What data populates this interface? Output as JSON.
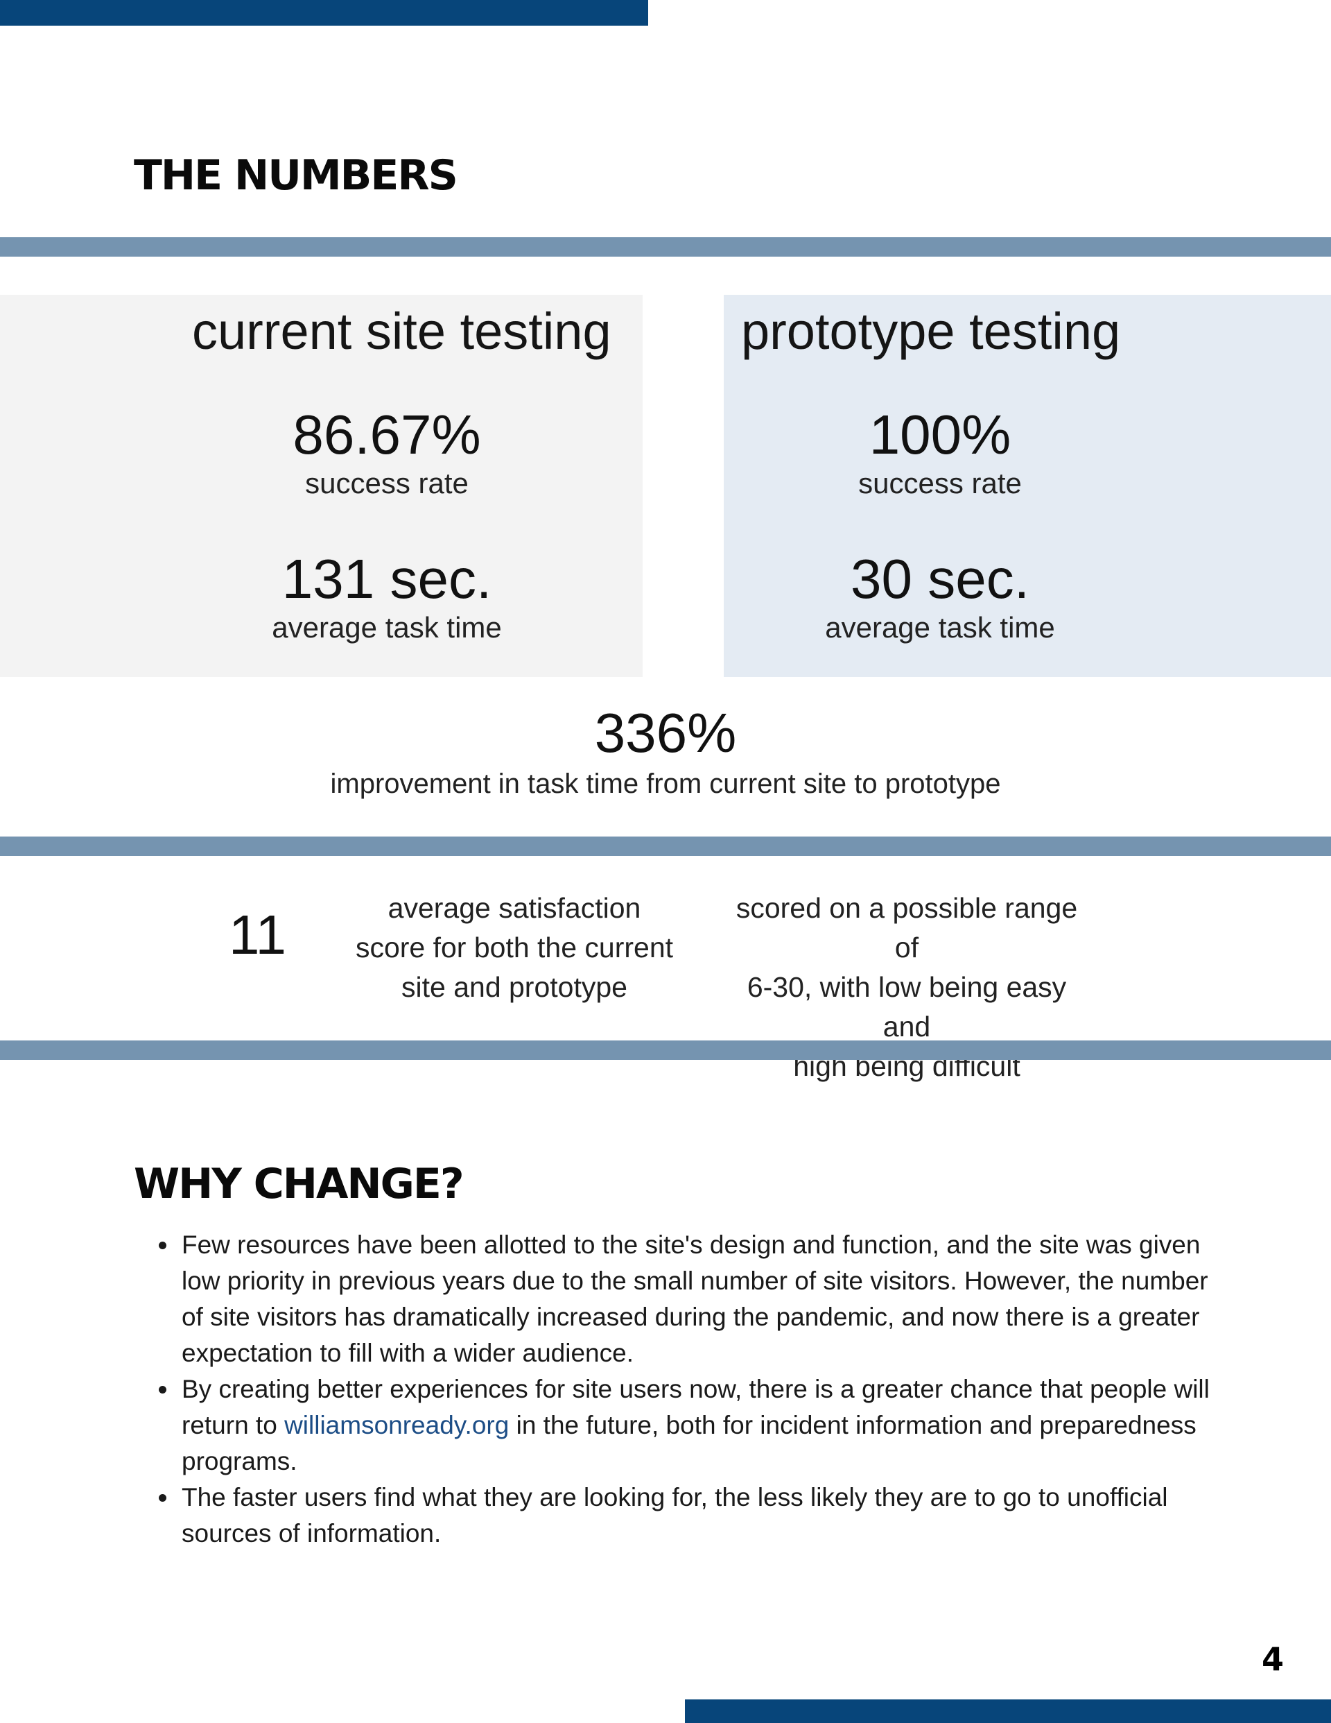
{
  "heading_numbers": "THE NUMBERS",
  "current": {
    "title": "current site testing",
    "success_value": "86.67%",
    "success_label": "success rate",
    "time_value": "131 sec.",
    "time_label": "average task time"
  },
  "prototype": {
    "title": "prototype testing",
    "success_value": "100%",
    "success_label": "success rate",
    "time_value": "30 sec.",
    "time_label": "average task time"
  },
  "improvement": {
    "value": "336%",
    "label": "improvement in task time from current site to prototype"
  },
  "satisfaction": {
    "value": "11",
    "desc_lines": [
      "average satisfaction",
      "score for both the current",
      "site and prototype"
    ],
    "scale_lines": [
      "scored on a possible range of",
      "6-30, with low being easy and",
      "high being difficult"
    ]
  },
  "heading_why": "WHY CHANGE?",
  "bullets": {
    "b1": "Few resources have been allotted to the site's design and function, and the site was given low priority in previous years due to the small number of site visitors. However, the number of site visitors has dramatically increased during the pandemic, and now there is a greater expectation to fill with a wider audience.",
    "b2_before": "By creating better experiences for site users now, there is a greater chance that people will return to ",
    "b2_link": "williamsonready.org",
    "b2_after": " in the future, both for incident information and preparedness programs.",
    "b3": "The faster users find what they are looking for, the less likely they are to go to unofficial sources of information."
  },
  "page_number": "4",
  "colors": {
    "navy_bar": "#07457a",
    "rule": "#7594b0",
    "panel_current": "#f3f3f3",
    "panel_prototype": "#e4ebf3",
    "link": "#1c4d86"
  }
}
